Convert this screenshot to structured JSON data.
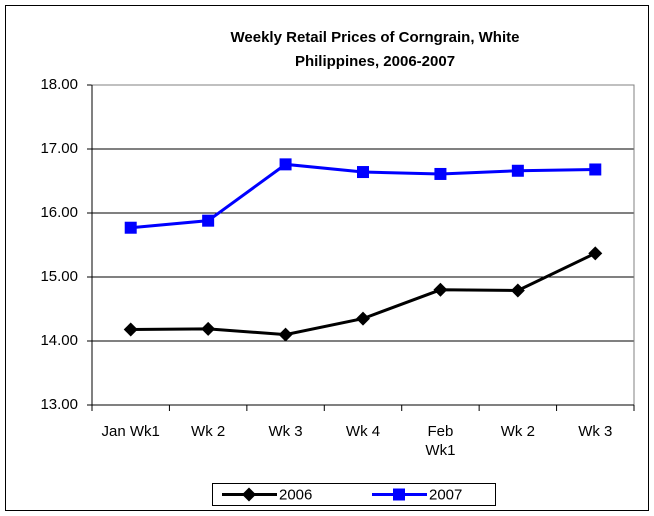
{
  "chart_data": {
    "type": "line",
    "title": "Weekly Retail Prices of Corngrain, White",
    "subtitle": "Philippines, 2006-2007",
    "categories": [
      "Jan Wk1",
      "Wk 2",
      "Wk 3",
      "Wk 4",
      "Feb\nWk1",
      "Wk 2",
      "Wk 3"
    ],
    "series": [
      {
        "name": "2006",
        "color": "#000000",
        "marker": "diamond",
        "values": [
          14.18,
          14.19,
          14.1,
          14.35,
          14.8,
          14.79,
          15.37
        ]
      },
      {
        "name": "2007",
        "color": "#0000ff",
        "marker": "square",
        "values": [
          15.77,
          15.88,
          16.76,
          16.64,
          16.61,
          16.66,
          16.68
        ]
      }
    ],
    "ylim": [
      13,
      18
    ],
    "yticks": [
      {
        "value": 13,
        "label": "13.00"
      },
      {
        "value": 14,
        "label": "14.00"
      },
      {
        "value": 15,
        "label": "15.00"
      },
      {
        "value": 16,
        "label": "16.00"
      },
      {
        "value": 17,
        "label": "17.00"
      },
      {
        "value": 18,
        "label": "18.00"
      }
    ],
    "grid": true,
    "legend": "bottom"
  }
}
